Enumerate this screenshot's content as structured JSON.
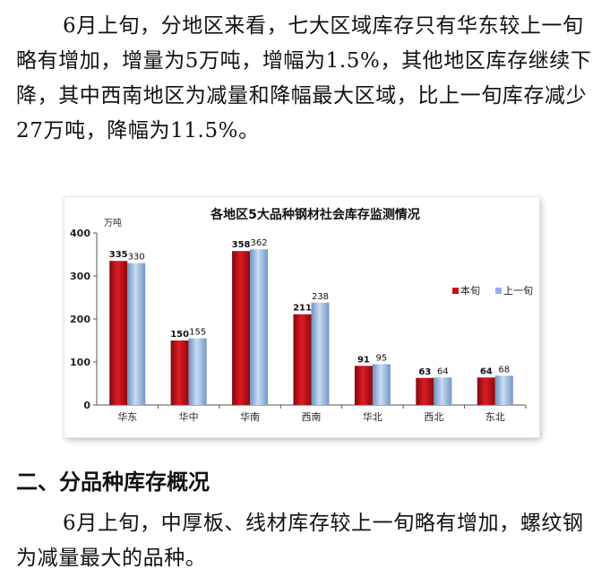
{
  "paragraph1": "6月上旬，分地区来看，七大区域库存只有华东较上一旬略有增加，增量为5万吨，增幅为1.5%，其他地区库存继续下降，其中西南地区为减量和降幅最大区域，比上一旬库存减少27万吨，降幅为11.5%。",
  "section_heading": "二、分品种库存概况",
  "paragraph2": "6月上旬，中厚板、线材库存较上一旬略有增加，螺纹钢为减量最大的品种。",
  "chart_data": {
    "type": "bar",
    "title": "各地区5大品种钢材社会库存监测情况",
    "ylabel": "万吨",
    "xlabel": "",
    "categories": [
      "华东",
      "华中",
      "华南",
      "西南",
      "华北",
      "西北",
      "东北"
    ],
    "series": [
      {
        "name": "本旬",
        "values": [
          335,
          150,
          358,
          211,
          91,
          63,
          64
        ],
        "color": "#c8101a"
      },
      {
        "name": "上一旬",
        "values": [
          330,
          155,
          362,
          238,
          95,
          64,
          68
        ],
        "color": "#8eb4e3"
      }
    ],
    "ylim": [
      0,
      400
    ],
    "yticks": [
      0,
      100,
      200,
      300,
      400
    ],
    "legend_position": "right",
    "grid": false
  }
}
